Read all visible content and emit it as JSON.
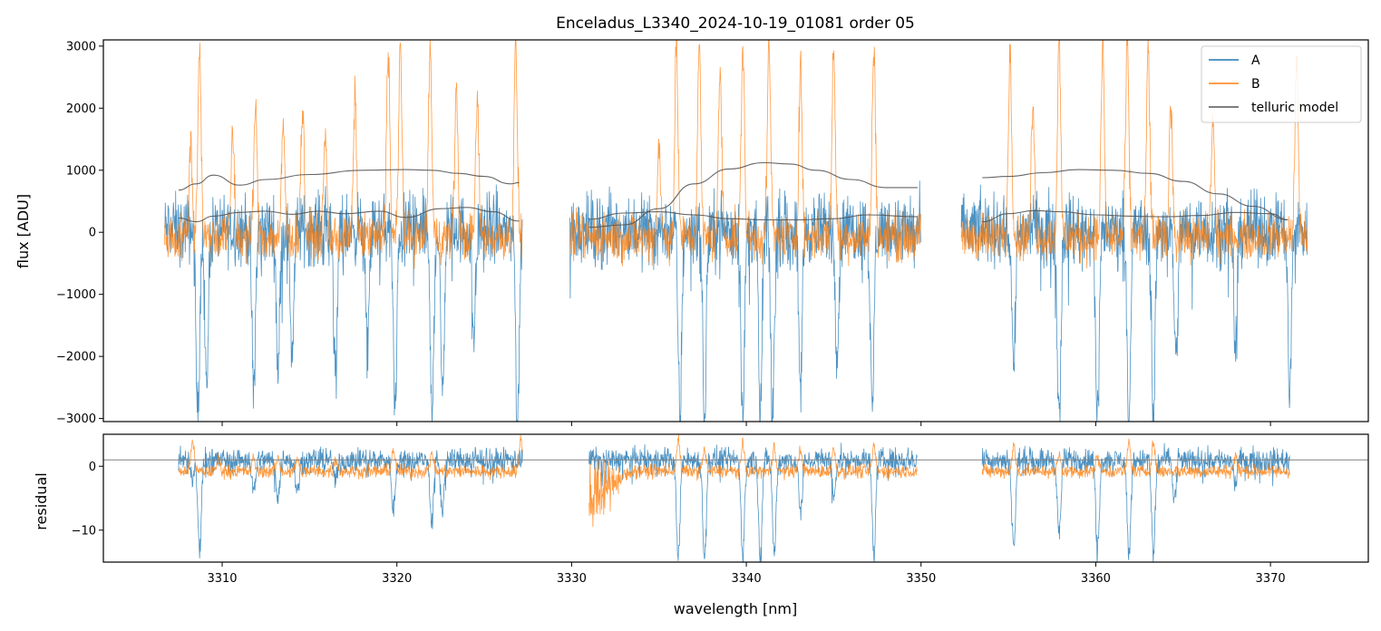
{
  "colors": {
    "A": "#1f77b4",
    "B": "#ff7f0e",
    "model": "#555555",
    "frame": "#000000",
    "zeroline": "#808080"
  },
  "chart_data": [
    {
      "type": "line",
      "panel": "top",
      "title": "Enceladus_L3340_2024-10-19_01081  order 05",
      "xlabel": "",
      "ylabel": "flux [ADU]",
      "xlim": [
        3303.2,
        3375.6
      ],
      "ylim": [
        -3050,
        3100
      ],
      "xticks": [
        3310,
        3320,
        3330,
        3340,
        3350,
        3360,
        3370
      ],
      "yticks": [
        -3000,
        -2000,
        -1000,
        0,
        1000,
        2000,
        3000
      ],
      "ytick_labels": [
        "−3000",
        "−2000",
        "−1000",
        "0",
        "1000",
        "2000",
        "3000"
      ],
      "legend": {
        "location": "top-right",
        "entries": [
          "A",
          "B",
          "telluric model"
        ]
      },
      "segments": [
        [
          3306.7,
          3327.2
        ],
        [
          3329.9,
          3350.0
        ],
        [
          3352.3,
          3372.1
        ]
      ],
      "series": [
        {
          "name": "A",
          "baseline": 50,
          "noise": 480,
          "deep_absorptions": [
            {
              "x": 3308.6,
              "depth": -3050
            },
            {
              "x": 3309.1,
              "depth": -2600
            },
            {
              "x": 3311.8,
              "depth": -2700
            },
            {
              "x": 3313.2,
              "depth": -2200
            },
            {
              "x": 3314.0,
              "depth": -2000
            },
            {
              "x": 3316.5,
              "depth": -2400
            },
            {
              "x": 3318.3,
              "depth": -2000
            },
            {
              "x": 3319.9,
              "depth": -3050
            },
            {
              "x": 3322.0,
              "depth": -3050
            },
            {
              "x": 3322.6,
              "depth": -2700
            },
            {
              "x": 3324.4,
              "depth": -1700
            },
            {
              "x": 3326.9,
              "depth": -3050
            },
            {
              "x": 3327.5,
              "depth": -3050
            },
            {
              "x": 3336.2,
              "depth": -3050
            },
            {
              "x": 3337.6,
              "depth": -3050
            },
            {
              "x": 3339.8,
              "depth": -3050
            },
            {
              "x": 3340.8,
              "depth": -3050
            },
            {
              "x": 3341.5,
              "depth": -3050
            },
            {
              "x": 3343.1,
              "depth": -2500
            },
            {
              "x": 3345.2,
              "depth": -2000
            },
            {
              "x": 3347.2,
              "depth": -3050
            },
            {
              "x": 3355.3,
              "depth": -2300
            },
            {
              "x": 3357.9,
              "depth": -3050
            },
            {
              "x": 3360.1,
              "depth": -3050
            },
            {
              "x": 3361.9,
              "depth": -3050
            },
            {
              "x": 3363.3,
              "depth": -3050
            },
            {
              "x": 3364.6,
              "depth": -2200
            },
            {
              "x": 3368.0,
              "depth": -1900
            },
            {
              "x": 3371.1,
              "depth": -2700
            }
          ]
        },
        {
          "name": "B",
          "baseline": -80,
          "noise": 320,
          "emission_peaks": [
            {
              "x": 3308.2,
              "height": 1500
            },
            {
              "x": 3308.7,
              "height": 3100
            },
            {
              "x": 3310.6,
              "height": 1700
            },
            {
              "x": 3311.9,
              "height": 2100
            },
            {
              "x": 3313.5,
              "height": 1800
            },
            {
              "x": 3314.6,
              "height": 2100
            },
            {
              "x": 3315.9,
              "height": 1600
            },
            {
              "x": 3317.6,
              "height": 2200
            },
            {
              "x": 3319.5,
              "height": 3100
            },
            {
              "x": 3320.2,
              "height": 3100
            },
            {
              "x": 3321.9,
              "height": 3100
            },
            {
              "x": 3323.4,
              "height": 2400
            },
            {
              "x": 3324.6,
              "height": 2200
            },
            {
              "x": 3326.8,
              "height": 3100
            },
            {
              "x": 3327.6,
              "height": 3100
            },
            {
              "x": 3335.0,
              "height": 1500
            },
            {
              "x": 3336.0,
              "height": 3100
            },
            {
              "x": 3337.3,
              "height": 3100
            },
            {
              "x": 3338.5,
              "height": 2700
            },
            {
              "x": 3339.8,
              "height": 3100
            },
            {
              "x": 3341.3,
              "height": 3100
            },
            {
              "x": 3343.1,
              "height": 2800
            },
            {
              "x": 3345.0,
              "height": 3100
            },
            {
              "x": 3347.3,
              "height": 3100
            },
            {
              "x": 3355.1,
              "height": 3100
            },
            {
              "x": 3356.4,
              "height": 2100
            },
            {
              "x": 3357.9,
              "height": 3100
            },
            {
              "x": 3360.4,
              "height": 3100
            },
            {
              "x": 3361.8,
              "height": 3100
            },
            {
              "x": 3363.0,
              "height": 3100
            },
            {
              "x": 3364.3,
              "height": 2200
            },
            {
              "x": 3366.7,
              "height": 1900
            },
            {
              "x": 3371.5,
              "height": 2900
            }
          ]
        },
        {
          "name": "telluric model",
          "curves": [
            {
              "x": [
                3307.5,
                3308.5,
                3309.5,
                3311.0,
                3312.5,
                3315.0,
                3318.0,
                3320.5,
                3322.0,
                3323.5,
                3325.0,
                3326.5,
                3327.0
              ],
              "y": [
                680,
                780,
                920,
                760,
                850,
                930,
                1000,
                1010,
                1000,
                950,
                900,
                780,
                800
              ]
            },
            {
              "x": [
                3307.5,
                3308.5,
                3309.5,
                3311.0,
                3312.5,
                3314.0,
                3315.5,
                3317.0,
                3319.0,
                3320.5,
                3322.5,
                3324.0,
                3325.5,
                3327.0
              ],
              "y": [
                230,
                170,
                260,
                320,
                340,
                290,
                340,
                300,
                340,
                240,
                380,
                400,
                330,
                180
              ]
            },
            {
              "x": [
                3331.0,
                3333.0,
                3335.0,
                3337.0,
                3339.0,
                3341.0,
                3342.5,
                3344.0,
                3346.0,
                3348.0,
                3349.8
              ],
              "y": [
                80,
                120,
                380,
                780,
                1020,
                1120,
                1100,
                1000,
                850,
                720,
                720
              ]
            },
            {
              "x": [
                3331.0,
                3333.0,
                3335.0,
                3337.0,
                3339.0,
                3341.0,
                3343.0,
                3345.0,
                3347.0,
                3349.8
              ],
              "y": [
                210,
                310,
                330,
                280,
                220,
                200,
                200,
                220,
                280,
                250
              ]
            },
            {
              "x": [
                3353.5,
                3355.0,
                3357.0,
                3359.0,
                3361.0,
                3363.0,
                3365.0,
                3367.0,
                3369.0,
                3371.0
              ],
              "y": [
                880,
                900,
                960,
                1010,
                1000,
                950,
                820,
                620,
                420,
                200
              ]
            },
            {
              "x": [
                3353.5,
                3355.0,
                3356.5,
                3358.0,
                3360.0,
                3362.0,
                3364.0,
                3366.0,
                3368.0,
                3370.0,
                3371.0
              ],
              "y": [
                170,
                300,
                350,
                330,
                280,
                260,
                250,
                270,
                320,
                300,
                200
              ]
            }
          ]
        }
      ]
    },
    {
      "type": "line",
      "panel": "bottom",
      "xlabel": "wavelength [nm]",
      "ylabel": "residual",
      "xlim": [
        3303.2,
        3375.6
      ],
      "ylim": [
        -15,
        5
      ],
      "xticks": [
        3310,
        3320,
        3330,
        3340,
        3350,
        3360,
        3370
      ],
      "yticks": [
        -10,
        0
      ],
      "ytick_labels": [
        "−10",
        "0"
      ],
      "reference_line": 1,
      "segments": [
        [
          3307.5,
          3327.2
        ],
        [
          3331.0,
          3349.8
        ],
        [
          3353.5,
          3371.1
        ]
      ],
      "series": [
        {
          "name": "A",
          "baseline": 1,
          "noise": 1.6,
          "dips": [
            {
              "x": 3308.3,
              "depth": -3
            },
            {
              "x": 3308.7,
              "depth": -14
            },
            {
              "x": 3311.8,
              "depth": -5
            },
            {
              "x": 3313.2,
              "depth": -6
            },
            {
              "x": 3314.3,
              "depth": -5
            },
            {
              "x": 3316.5,
              "depth": -3.5
            },
            {
              "x": 3319.8,
              "depth": -8
            },
            {
              "x": 3322.0,
              "depth": -10
            },
            {
              "x": 3322.6,
              "depth": -8
            },
            {
              "x": 3336.1,
              "depth": -15
            },
            {
              "x": 3337.6,
              "depth": -15
            },
            {
              "x": 3339.8,
              "depth": -15
            },
            {
              "x": 3340.8,
              "depth": -15
            },
            {
              "x": 3341.6,
              "depth": -15
            },
            {
              "x": 3343.1,
              "depth": -8
            },
            {
              "x": 3345.0,
              "depth": -6
            },
            {
              "x": 3347.3,
              "depth": -14.5
            },
            {
              "x": 3355.3,
              "depth": -14
            },
            {
              "x": 3357.9,
              "depth": -12
            },
            {
              "x": 3360.1,
              "depth": -14
            },
            {
              "x": 3361.9,
              "depth": -15
            },
            {
              "x": 3363.3,
              "depth": -15
            },
            {
              "x": 3364.5,
              "depth": -6
            },
            {
              "x": 3368.0,
              "depth": -4
            }
          ]
        },
        {
          "name": "B",
          "baseline": -0.8,
          "noise": 0.9,
          "bumps": [
            {
              "x": 3308.3,
              "height": 5
            },
            {
              "x": 3309.8,
              "height": 2
            },
            {
              "x": 3311.8,
              "height": 2
            },
            {
              "x": 3313.2,
              "height": 2
            },
            {
              "x": 3314.3,
              "height": 2
            },
            {
              "x": 3316.5,
              "height": 2
            },
            {
              "x": 3319.8,
              "height": 3.5
            },
            {
              "x": 3322.0,
              "height": 3
            },
            {
              "x": 3327.1,
              "height": 5
            },
            {
              "x": 3336.1,
              "height": 5
            },
            {
              "x": 3337.6,
              "height": 3.5
            },
            {
              "x": 3339.8,
              "height": 4
            },
            {
              "x": 3341.6,
              "height": 4
            },
            {
              "x": 3343.1,
              "height": 3.5
            },
            {
              "x": 3345.0,
              "height": 3.5
            },
            {
              "x": 3347.3,
              "height": 4
            },
            {
              "x": 3355.3,
              "height": 4
            },
            {
              "x": 3357.9,
              "height": 2.5
            },
            {
              "x": 3360.1,
              "height": 2.5
            },
            {
              "x": 3361.9,
              "height": 4.5
            },
            {
              "x": 3363.3,
              "height": 4.5
            },
            {
              "x": 3368.0,
              "height": 2.5
            }
          ],
          "edge_noise": {
            "x_start": 3331.0,
            "x_end": 3333.5,
            "min": -14
          }
        }
      ]
    }
  ]
}
